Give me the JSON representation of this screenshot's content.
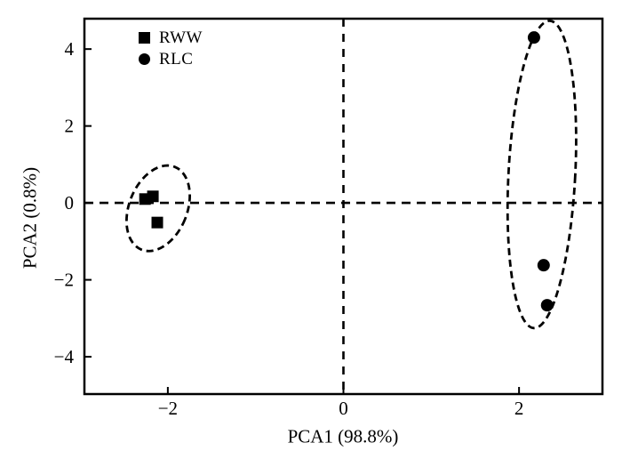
{
  "colors": {
    "foreground": "#000000",
    "background": "#ffffff"
  },
  "chart_data": {
    "type": "scatter",
    "title": "",
    "xlabel": "PCA1 (98.8%)",
    "ylabel": "PCA2 (0.8%)",
    "xlim": [
      -2.95,
      2.95
    ],
    "ylim": [
      -4.97,
      4.79
    ],
    "x_ticks": [
      -2,
      0,
      2
    ],
    "y_ticks": [
      4,
      2,
      0,
      -2,
      -4
    ],
    "grid": false,
    "zero_lines": {
      "x": 0,
      "y": 0,
      "style": "dashed"
    },
    "legend": {
      "position": "top-left-inside",
      "entries": [
        "RWW",
        "RLC"
      ]
    },
    "series": [
      {
        "name": "RWW",
        "marker": "square",
        "color": "#000000",
        "points": [
          [
            -2.26,
            0.1
          ],
          [
            -2.17,
            0.17
          ],
          [
            -2.12,
            -0.51
          ]
        ]
      },
      {
        "name": "RLC",
        "marker": "circle",
        "color": "#000000",
        "points": [
          [
            2.17,
            4.3
          ],
          [
            2.28,
            -1.62
          ],
          [
            2.32,
            -2.66
          ]
        ]
      }
    ],
    "cluster_ellipses": [
      {
        "series": "RWW",
        "center": [
          -2.11,
          -0.14
        ],
        "rx": 0.33,
        "ry": 1.16,
        "rotation_deg": 22,
        "style": "dashed"
      },
      {
        "series": "RLC",
        "center": [
          2.26,
          0.74
        ],
        "rx": 0.38,
        "ry": 4.0,
        "rotation_deg": 3,
        "style": "dashed"
      }
    ]
  }
}
